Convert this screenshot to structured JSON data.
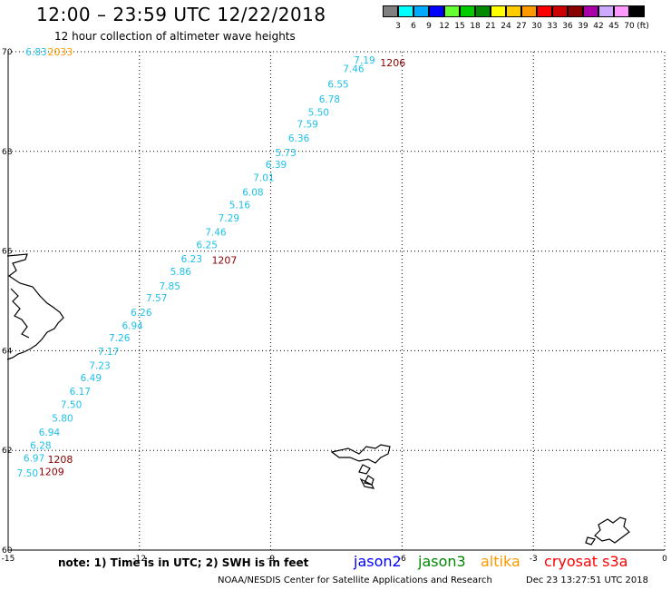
{
  "header": {
    "title": "12:00 – 23:59 UTC 12/22/2018",
    "subtitle": "12 hour collection of altimeter wave heights"
  },
  "color_scale": {
    "labels": [
      "3",
      "6",
      "9",
      "12",
      "15",
      "18",
      "21",
      "24",
      "27",
      "30",
      "33",
      "36",
      "39",
      "42",
      "45",
      "70"
    ],
    "unit": "(ft)",
    "colors": [
      "#808080",
      "#00ffff",
      "#00aaff",
      "#0000ff",
      "#66ff33",
      "#00cc00",
      "#008800",
      "#ffff00",
      "#ffcc00",
      "#ff9900",
      "#ff0000",
      "#cc0000",
      "#880000",
      "#aa00aa",
      "#ccaaff",
      "#ff99ff",
      "#000000"
    ]
  },
  "axes": {
    "lat_labels": [
      "70",
      "68",
      "66",
      "64",
      "62",
      "60"
    ],
    "lon_labels": [
      "-15",
      "-12",
      "-9",
      "-6",
      "-3",
      "0"
    ]
  },
  "wave_heights": [
    {
      "v": "6.83",
      "lat": 70.0,
      "lon": -14.6
    },
    {
      "v": "7.19",
      "lat": 69.84,
      "lon": -7.1
    },
    {
      "v": "7.46",
      "lat": 69.66,
      "lon": -7.35
    },
    {
      "v": "6.55",
      "lat": 69.35,
      "lon": -7.7
    },
    {
      "v": "6.78",
      "lat": 69.05,
      "lon": -7.9
    },
    {
      "v": "5.50",
      "lat": 68.79,
      "lon": -8.15
    },
    {
      "v": "7.59",
      "lat": 68.55,
      "lon": -8.4
    },
    {
      "v": "6.36",
      "lat": 68.27,
      "lon": -8.6
    },
    {
      "v": "5.73",
      "lat": 67.98,
      "lon": -8.9
    },
    {
      "v": "6.39",
      "lat": 67.74,
      "lon": -9.12
    },
    {
      "v": "7.01",
      "lat": 67.48,
      "lon": -9.4
    },
    {
      "v": "6.08",
      "lat": 67.19,
      "lon": -9.65
    },
    {
      "v": "5.16",
      "lat": 66.93,
      "lon": -9.95
    },
    {
      "v": "7.29",
      "lat": 66.67,
      "lon": -10.2
    },
    {
      "v": "7.46",
      "lat": 66.38,
      "lon": -10.5
    },
    {
      "v": "6.25",
      "lat": 66.13,
      "lon": -10.7
    },
    {
      "v": "6.23",
      "lat": 65.85,
      "lon": -11.05
    },
    {
      "v": "5.86",
      "lat": 65.59,
      "lon": -11.3
    },
    {
      "v": "7.85",
      "lat": 65.3,
      "lon": -11.55
    },
    {
      "v": "7.57",
      "lat": 65.06,
      "lon": -11.85
    },
    {
      "v": "6.26",
      "lat": 64.77,
      "lon": -12.2
    },
    {
      "v": "6.94",
      "lat": 64.51,
      "lon": -12.4
    },
    {
      "v": "7.26",
      "lat": 64.26,
      "lon": -12.7
    },
    {
      "v": "7.17",
      "lat": 63.99,
      "lon": -12.95
    },
    {
      "v": "7.23",
      "lat": 63.71,
      "lon": -13.15
    },
    {
      "v": "6.49",
      "lat": 63.46,
      "lon": -13.35
    },
    {
      "v": "6.17",
      "lat": 63.19,
      "lon": -13.6
    },
    {
      "v": "7.50",
      "lat": 62.92,
      "lon": -13.8
    },
    {
      "v": "5.80",
      "lat": 62.65,
      "lon": -14.0
    },
    {
      "v": "6.94",
      "lat": 62.37,
      "lon": -14.3
    },
    {
      "v": "6.28",
      "lat": 62.1,
      "lon": -14.5
    },
    {
      "v": "6.97",
      "lat": 61.85,
      "lon": -14.65
    },
    {
      "v": "7.50",
      "lat": 61.55,
      "lon": -14.8
    }
  ],
  "pass_times": [
    {
      "t": "2033",
      "color": "#ff9900",
      "lat": 70.0,
      "lon": -14.1
    },
    {
      "t": "1206",
      "color": "#880000",
      "lat": 69.78,
      "lon": -6.5
    },
    {
      "t": "1207",
      "color": "#880000",
      "lat": 65.82,
      "lon": -10.35
    },
    {
      "t": "1208",
      "color": "#880000",
      "lat": 61.82,
      "lon": -14.1
    },
    {
      "t": "1209",
      "color": "#880000",
      "lat": 61.58,
      "lon": -14.3
    }
  ],
  "footer": {
    "note": "note:  1) Time is in UTC;  2) SWH is in feet",
    "satellites": [
      {
        "name": "jason2",
        "color": "#0000ff"
      },
      {
        "name": "jason3",
        "color": "#008800"
      },
      {
        "name": "altika",
        "color": "#ff9900"
      },
      {
        "name": "cryosat s3a",
        "color": "#ff0000"
      }
    ],
    "credit": "NOAA/NESDIS Center for Satellite Applications and Research",
    "timestamp": "Dec 23 13:27:51 UTC 2018"
  }
}
